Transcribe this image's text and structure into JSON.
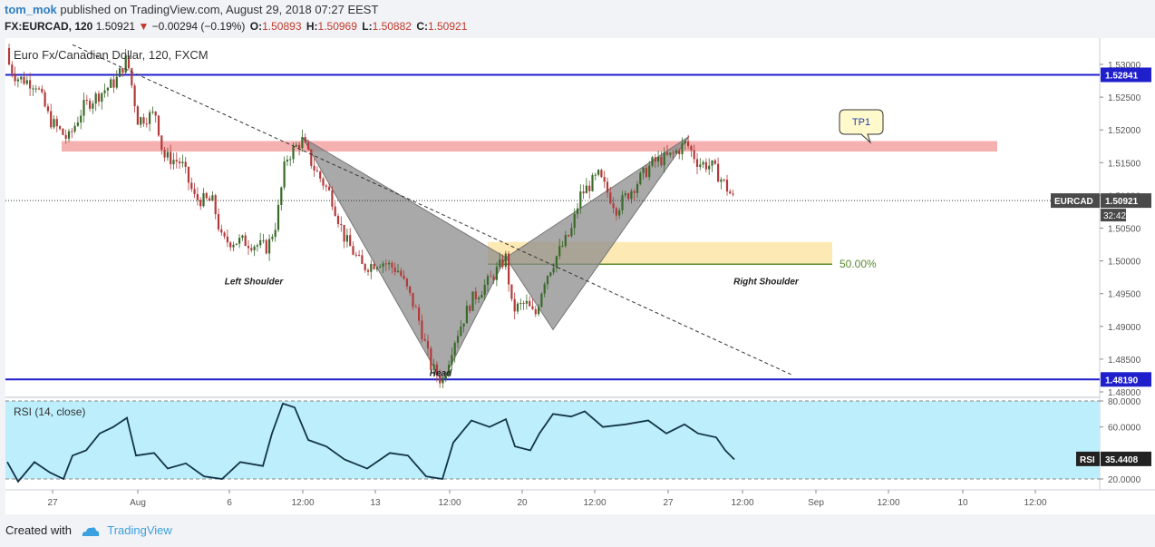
{
  "header": {
    "user": "tom_mok",
    "published_text": "published on TradingView.com, August 29, 2018 07:27 EEST",
    "symbol_interval": "FX:EURCAD, 120",
    "last": "1.50921",
    "change": "−0.00294 (−0.19%)",
    "open_label": "O:",
    "open": "1.50893",
    "high_label": "H:",
    "high": "1.50969",
    "low_label": "L:",
    "low": "1.50882",
    "close_label": "C:",
    "close": "1.50921"
  },
  "footer": {
    "created_with": "Created with",
    "brand": "TradingView"
  },
  "colors": {
    "up_candle": "#3a6a2a",
    "down_candle": "#b23a3a",
    "blue_line": "#1f1fcc",
    "resistance_zone": "#f4a7a7",
    "fib_zone": "#fde9b4",
    "fib_line": "#5a8a2e",
    "pattern_fill": "#8c8c8c",
    "rsi_fill": "#bdeefc",
    "rsi_line": "#13344a"
  },
  "chart_data": [
    {
      "type": "candlestick",
      "title": "Euro Fx/Canadian Dollar, 120, FXCM",
      "ylim": [
        1.478,
        1.534
      ],
      "x_tick_labels": [
        "27",
        "Aug",
        "6",
        "12:00",
        "13",
        "12:00",
        "20",
        "12:00",
        "27",
        "12:00",
        "Sep",
        "12:00",
        "10",
        "12:00"
      ],
      "y_tick_labels": [
        "1.53000",
        "1.52500",
        "1.52000",
        "1.51500",
        "1.51000",
        "1.50500",
        "1.50000",
        "1.49500",
        "1.49000",
        "1.48500",
        "1.48000"
      ],
      "price_series": [
        {
          "x": 0,
          "y": 1.5325
        },
        {
          "x": 18,
          "y": 1.528
        },
        {
          "x": 40,
          "y": 1.527
        },
        {
          "x": 55,
          "y": 1.5215
        },
        {
          "x": 75,
          "y": 1.5185
        },
        {
          "x": 92,
          "y": 1.5235
        },
        {
          "x": 110,
          "y": 1.5255
        },
        {
          "x": 128,
          "y": 1.5275
        },
        {
          "x": 140,
          "y": 1.531
        },
        {
          "x": 152,
          "y": 1.5215
        },
        {
          "x": 172,
          "y": 1.5225
        },
        {
          "x": 180,
          "y": 1.516
        },
        {
          "x": 200,
          "y": 1.515
        },
        {
          "x": 215,
          "y": 1.5095
        },
        {
          "x": 235,
          "y": 1.509
        },
        {
          "x": 245,
          "y": 1.503
        },
        {
          "x": 268,
          "y": 1.503
        },
        {
          "x": 295,
          "y": 1.502
        },
        {
          "x": 305,
          "y": 1.506
        },
        {
          "x": 315,
          "y": 1.5155
        },
        {
          "x": 333,
          "y": 1.5185
        },
        {
          "x": 345,
          "y": 1.5145
        },
        {
          "x": 365,
          "y": 1.51
        },
        {
          "x": 380,
          "y": 1.5035
        },
        {
          "x": 400,
          "y": 1.499
        },
        {
          "x": 420,
          "y": 1.5
        },
        {
          "x": 440,
          "y": 1.4985
        },
        {
          "x": 460,
          "y": 1.492
        },
        {
          "x": 475,
          "y": 1.484
        },
        {
          "x": 488,
          "y": 1.4815
        },
        {
          "x": 500,
          "y": 1.4875
        },
        {
          "x": 520,
          "y": 1.494
        },
        {
          "x": 540,
          "y": 1.497
        },
        {
          "x": 558,
          "y": 1.5005
        },
        {
          "x": 565,
          "y": 1.4925
        },
        {
          "x": 580,
          "y": 1.4935
        },
        {
          "x": 590,
          "y": 1.4915
        },
        {
          "x": 600,
          "y": 1.497
        },
        {
          "x": 615,
          "y": 1.501
        },
        {
          "x": 630,
          "y": 1.5045
        },
        {
          "x": 640,
          "y": 1.51
        },
        {
          "x": 660,
          "y": 1.513
        },
        {
          "x": 680,
          "y": 1.508
        },
        {
          "x": 700,
          "y": 1.5115
        },
        {
          "x": 720,
          "y": 1.515
        },
        {
          "x": 740,
          "y": 1.516
        },
        {
          "x": 757,
          "y": 1.518
        },
        {
          "x": 770,
          "y": 1.515
        },
        {
          "x": 785,
          "y": 1.5145
        },
        {
          "x": 798,
          "y": 1.512
        },
        {
          "x": 810,
          "y": 1.5092
        }
      ],
      "horizontal_lines": [
        {
          "value": 1.52841,
          "label": "1.52841"
        },
        {
          "value": 1.4819,
          "label": "1.48190"
        }
      ],
      "resistance_zone": {
        "from": 1.5167,
        "to": 1.5183
      },
      "fib_zone": {
        "from": 1.4995,
        "to": 1.5029,
        "level_label": "50.00%"
      },
      "trendline": [
        {
          "x": 80,
          "y": 1.533
        },
        {
          "x": 875,
          "y": 1.4825
        }
      ],
      "harmonic_pattern": [
        [
          {
            "x": 334,
            "y": 1.5188
          },
          {
            "x": 488,
            "y": 1.4815
          },
          {
            "x": 558,
            "y": 1.5005
          }
        ],
        [
          {
            "x": 558,
            "y": 1.5005
          },
          {
            "x": 610,
            "y": 1.4895
          },
          {
            "x": 760,
            "y": 1.519
          }
        ]
      ],
      "annotations": [
        {
          "text": "Left Shoulder",
          "x": 280,
          "y": 1.497
        },
        {
          "text": "Head",
          "x": 486,
          "y": 1.483
        },
        {
          "text": "Right Shoulder",
          "x": 845,
          "y": 1.497
        },
        {
          "text": "TP1",
          "x": 950,
          "y": 1.521
        }
      ],
      "last_price_label": {
        "symbol": "EURCAD",
        "value": "1.50921",
        "timer": "32:42"
      }
    },
    {
      "type": "line",
      "title": "RSI (14, close)",
      "ylim": [
        10,
        82
      ],
      "y_tick_labels": [
        "80.0000",
        "60.0000",
        "20.0000"
      ],
      "bands": [
        20,
        80
      ],
      "last_value": {
        "label": "RSI",
        "value": "35.4408"
      },
      "series": [
        {
          "x": 8,
          "y": 33
        },
        {
          "x": 20,
          "y": 18
        },
        {
          "x": 38,
          "y": 33
        },
        {
          "x": 55,
          "y": 25
        },
        {
          "x": 70,
          "y": 20
        },
        {
          "x": 80,
          "y": 38
        },
        {
          "x": 95,
          "y": 42
        },
        {
          "x": 110,
          "y": 55
        },
        {
          "x": 125,
          "y": 60
        },
        {
          "x": 140,
          "y": 67
        },
        {
          "x": 150,
          "y": 38
        },
        {
          "x": 170,
          "y": 40
        },
        {
          "x": 185,
          "y": 28
        },
        {
          "x": 205,
          "y": 32
        },
        {
          "x": 225,
          "y": 22
        },
        {
          "x": 245,
          "y": 20
        },
        {
          "x": 265,
          "y": 33
        },
        {
          "x": 290,
          "y": 30
        },
        {
          "x": 300,
          "y": 55
        },
        {
          "x": 312,
          "y": 78
        },
        {
          "x": 325,
          "y": 75
        },
        {
          "x": 340,
          "y": 50
        },
        {
          "x": 360,
          "y": 45
        },
        {
          "x": 380,
          "y": 35
        },
        {
          "x": 405,
          "y": 28
        },
        {
          "x": 430,
          "y": 40
        },
        {
          "x": 450,
          "y": 38
        },
        {
          "x": 470,
          "y": 22
        },
        {
          "x": 488,
          "y": 20
        },
        {
          "x": 500,
          "y": 48
        },
        {
          "x": 520,
          "y": 65
        },
        {
          "x": 540,
          "y": 60
        },
        {
          "x": 558,
          "y": 66
        },
        {
          "x": 568,
          "y": 45
        },
        {
          "x": 585,
          "y": 42
        },
        {
          "x": 595,
          "y": 55
        },
        {
          "x": 610,
          "y": 70
        },
        {
          "x": 630,
          "y": 68
        },
        {
          "x": 645,
          "y": 72
        },
        {
          "x": 665,
          "y": 60
        },
        {
          "x": 690,
          "y": 62
        },
        {
          "x": 715,
          "y": 65
        },
        {
          "x": 735,
          "y": 55
        },
        {
          "x": 755,
          "y": 62
        },
        {
          "x": 770,
          "y": 55
        },
        {
          "x": 790,
          "y": 52
        },
        {
          "x": 800,
          "y": 42
        },
        {
          "x": 810,
          "y": 35
        }
      ]
    }
  ]
}
